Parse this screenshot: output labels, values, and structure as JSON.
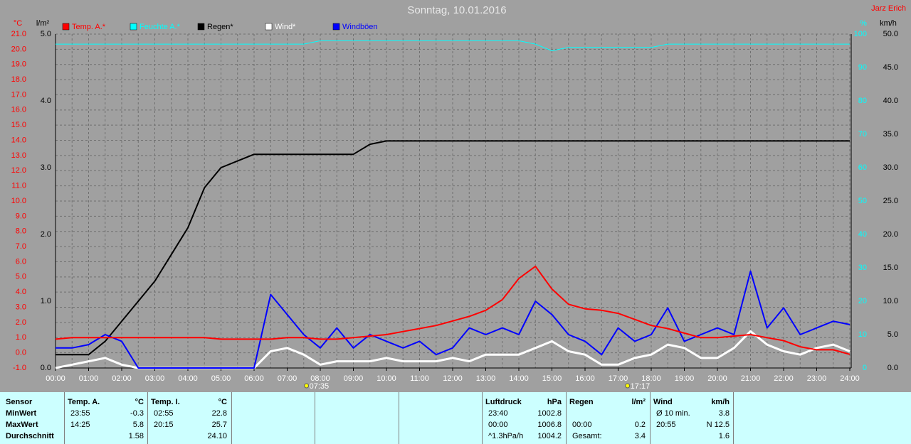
{
  "chart_data": {
    "type": "line",
    "title": "Sonntag, 10.01.2016",
    "station": "Jarz Erich",
    "x": [
      "00:00",
      "00:30",
      "01:00",
      "01:30",
      "02:00",
      "02:30",
      "03:00",
      "03:30",
      "04:00",
      "04:30",
      "05:00",
      "05:30",
      "06:00",
      "06:30",
      "07:00",
      "07:30",
      "08:00",
      "08:30",
      "09:00",
      "09:30",
      "10:00",
      "10:30",
      "11:00",
      "11:30",
      "12:00",
      "12:30",
      "13:00",
      "13:30",
      "14:00",
      "14:30",
      "15:00",
      "15:30",
      "16:00",
      "16:30",
      "17:00",
      "17:30",
      "18:00",
      "18:30",
      "19:00",
      "19:30",
      "20:00",
      "20:30",
      "21:00",
      "21:30",
      "22:00",
      "22:30",
      "23:00",
      "23:30",
      "24:00"
    ],
    "xticks": [
      "00:00",
      "01:00",
      "02:00",
      "03:00",
      "04:00",
      "05:00",
      "06:00",
      "07:00",
      "08:00",
      "09:00",
      "10:00",
      "11:00",
      "12:00",
      "13:00",
      "14:00",
      "15:00",
      "16:00",
      "17:00",
      "18:00",
      "19:00",
      "20:00",
      "21:00",
      "22:00",
      "23:00",
      "24:00"
    ],
    "sunrise": "07:35",
    "sunset": "17:17",
    "grid": true,
    "axes": [
      {
        "label": "°C",
        "color": "#ff0000",
        "lim": [
          -1,
          21
        ],
        "ticks": [
          {
            "value": -1,
            "label": "-1.0"
          },
          {
            "value": 0,
            "label": "0.0"
          },
          {
            "value": 1,
            "label": "1.0"
          },
          {
            "value": 2,
            "label": "2.0"
          },
          {
            "value": 3,
            "label": "3.0"
          },
          {
            "value": 4,
            "label": "4.0"
          },
          {
            "value": 5,
            "label": "5.0"
          },
          {
            "value": 6,
            "label": "6.0"
          },
          {
            "value": 7,
            "label": "7.0"
          },
          {
            "value": 8,
            "label": "8.0"
          },
          {
            "value": 9,
            "label": "9.0"
          },
          {
            "value": 10,
            "label": "10.0"
          },
          {
            "value": 11,
            "label": "11.0"
          },
          {
            "value": 12,
            "label": "12.0"
          },
          {
            "value": 13,
            "label": "13.0"
          },
          {
            "value": 14,
            "label": "14.0"
          },
          {
            "value": 15,
            "label": "15.0"
          },
          {
            "value": 16,
            "label": "16.0"
          },
          {
            "value": 17,
            "label": "17.0"
          },
          {
            "value": 18,
            "label": "18.0"
          },
          {
            "value": 19,
            "label": "19.0"
          },
          {
            "value": 20,
            "label": "20.0"
          },
          {
            "value": 21,
            "label": "21.0"
          }
        ]
      },
      {
        "label": "l/m²",
        "color": "#000000",
        "lim": [
          0,
          5
        ],
        "ticks": [
          {
            "value": 0,
            "label": "0.0"
          },
          {
            "value": 1,
            "label": "1.0"
          },
          {
            "value": 2,
            "label": "2.0"
          },
          {
            "value": 3,
            "label": "3.0"
          },
          {
            "value": 4,
            "label": "4.0"
          },
          {
            "value": 5,
            "label": "5.0"
          }
        ]
      },
      {
        "label": "%",
        "color": "#00ffff",
        "lim": [
          0,
          100
        ],
        "ticks": [
          0,
          10,
          20,
          30,
          40,
          50,
          60,
          70,
          80,
          90,
          100
        ]
      },
      {
        "label": "km/h",
        "color": "#000000",
        "lim": [
          0,
          50
        ],
        "ticks": [
          {
            "value": 0,
            "label": "0.0"
          },
          {
            "value": 5,
            "label": "5.0"
          },
          {
            "value": 10,
            "label": "10.0"
          },
          {
            "value": 15,
            "label": "15.0"
          },
          {
            "value": 20,
            "label": "20.0"
          },
          {
            "value": 25,
            "label": "25.0"
          },
          {
            "value": 30,
            "label": "30.0"
          },
          {
            "value": 35,
            "label": "35.0"
          },
          {
            "value": 40,
            "label": "40.0"
          },
          {
            "value": 45,
            "label": "45.0"
          },
          {
            "value": 50,
            "label": "50.0"
          }
        ]
      }
    ],
    "series": [
      {
        "name": "Temp. A.*",
        "color": "#ff0000",
        "axis": 0,
        "values": [
          0.9,
          1.0,
          1.0,
          1.0,
          1.0,
          1.0,
          1.0,
          1.0,
          1.0,
          1.0,
          0.9,
          0.9,
          0.9,
          0.9,
          1.0,
          1.0,
          0.9,
          0.9,
          1.0,
          1.1,
          1.2,
          1.4,
          1.6,
          1.8,
          2.1,
          2.4,
          2.8,
          3.5,
          4.9,
          5.7,
          4.2,
          3.2,
          2.9,
          2.8,
          2.6,
          2.2,
          1.8,
          1.6,
          1.3,
          1.0,
          1.0,
          1.1,
          1.2,
          1.0,
          0.8,
          0.4,
          0.2,
          0.2,
          -0.1
        ]
      },
      {
        "name": "Feuchte A.*",
        "color": "#00ffff",
        "axis": 2,
        "values": [
          97,
          97,
          97,
          97,
          97,
          97,
          97,
          97,
          97,
          97,
          97,
          97,
          97,
          97,
          97,
          97,
          98,
          98,
          98,
          98,
          98,
          98,
          98,
          98,
          98,
          98,
          98,
          98,
          98,
          97,
          95,
          96,
          96,
          96,
          96,
          96,
          96,
          97,
          97,
          97,
          97,
          97,
          97,
          97,
          97,
          97,
          97,
          97,
          97
        ]
      },
      {
        "name": "Regen*",
        "color": "#000000",
        "axis": 1,
        "values": [
          0.2,
          0.2,
          0.2,
          0.4,
          0.7,
          1.0,
          1.3,
          1.7,
          2.1,
          2.7,
          3.0,
          3.1,
          3.2,
          3.2,
          3.2,
          3.2,
          3.2,
          3.2,
          3.2,
          3.35,
          3.4,
          3.4,
          3.4,
          3.4,
          3.4,
          3.4,
          3.4,
          3.4,
          3.4,
          3.4,
          3.4,
          3.4,
          3.4,
          3.4,
          3.4,
          3.4,
          3.4,
          3.4,
          3.4,
          3.4,
          3.4,
          3.4,
          3.4,
          3.4,
          3.4,
          3.4,
          3.4,
          3.4,
          3.4
        ]
      },
      {
        "name": "Wind*",
        "color": "#ffffff",
        "axis": 3,
        "values": [
          0,
          0.5,
          1,
          1.5,
          0.5,
          0,
          0,
          0,
          0,
          0,
          0,
          0,
          0,
          2.5,
          3,
          2,
          0.5,
          1,
          1,
          1,
          1.5,
          1,
          1,
          1,
          1.5,
          1,
          2,
          2,
          2,
          3,
          4,
          2.5,
          2,
          0.5,
          0.5,
          1.5,
          2,
          3.5,
          3,
          1.5,
          1.5,
          3,
          5.5,
          3.5,
          2.5,
          2,
          3,
          3.5,
          2.5
        ]
      },
      {
        "name": "Windböen",
        "color": "#0000ff",
        "axis": 3,
        "values": [
          3,
          3,
          3.5,
          5,
          4,
          0,
          0,
          0,
          0,
          0,
          0,
          0,
          0,
          11,
          8,
          5,
          3,
          6,
          3,
          5,
          4,
          3,
          4,
          2,
          3,
          6,
          5,
          6,
          5,
          10,
          8,
          5,
          4,
          2,
          6,
          4,
          5,
          9,
          4,
          5,
          6,
          5,
          14.5,
          6,
          9,
          5,
          6,
          7,
          6.5
        ]
      }
    ]
  },
  "stats": {
    "row_labels": [
      "Sensor",
      "MinWert",
      "MaxWert",
      "Durchschnitt"
    ],
    "panels": [
      {
        "title": "Temp. A.",
        "unit": "°C",
        "rows": {
          "min": {
            "time": "23:55",
            "value": "-0.3"
          },
          "max": {
            "time": "14:25",
            "value": "5.8"
          },
          "avg": {
            "value": "1.58"
          }
        }
      },
      {
        "title": "Temp. I.",
        "unit": "°C",
        "rows": {
          "min": {
            "time": "02:55",
            "value": "22.8"
          },
          "max": {
            "time": "20:15",
            "value": "25.7"
          },
          "avg": {
            "value": "24.10"
          }
        }
      },
      {
        "title": "Luftdruck",
        "unit": "hPa",
        "rows": {
          "min": {
            "time": "23:40",
            "value": "1002.8"
          },
          "max": {
            "time": "00:00",
            "value": "1006.8"
          },
          "avg": {
            "time": "^1.3hPa/h",
            "value": "1004.2"
          }
        }
      },
      {
        "title": "Regen",
        "unit": "l/m²",
        "rows": {
          "max": {
            "time": "00:00",
            "value": "0.2"
          },
          "avg": {
            "time": "Gesamt:",
            "value": "3.4"
          }
        }
      },
      {
        "title": "Wind",
        "unit": "km/h",
        "rows": {
          "min": {
            "time": "Ø 10 min.",
            "value": "3.8"
          },
          "max": {
            "time": "20:55",
            "value": "N 12.5"
          },
          "avg": {
            "value": "1.6"
          }
        }
      }
    ]
  }
}
